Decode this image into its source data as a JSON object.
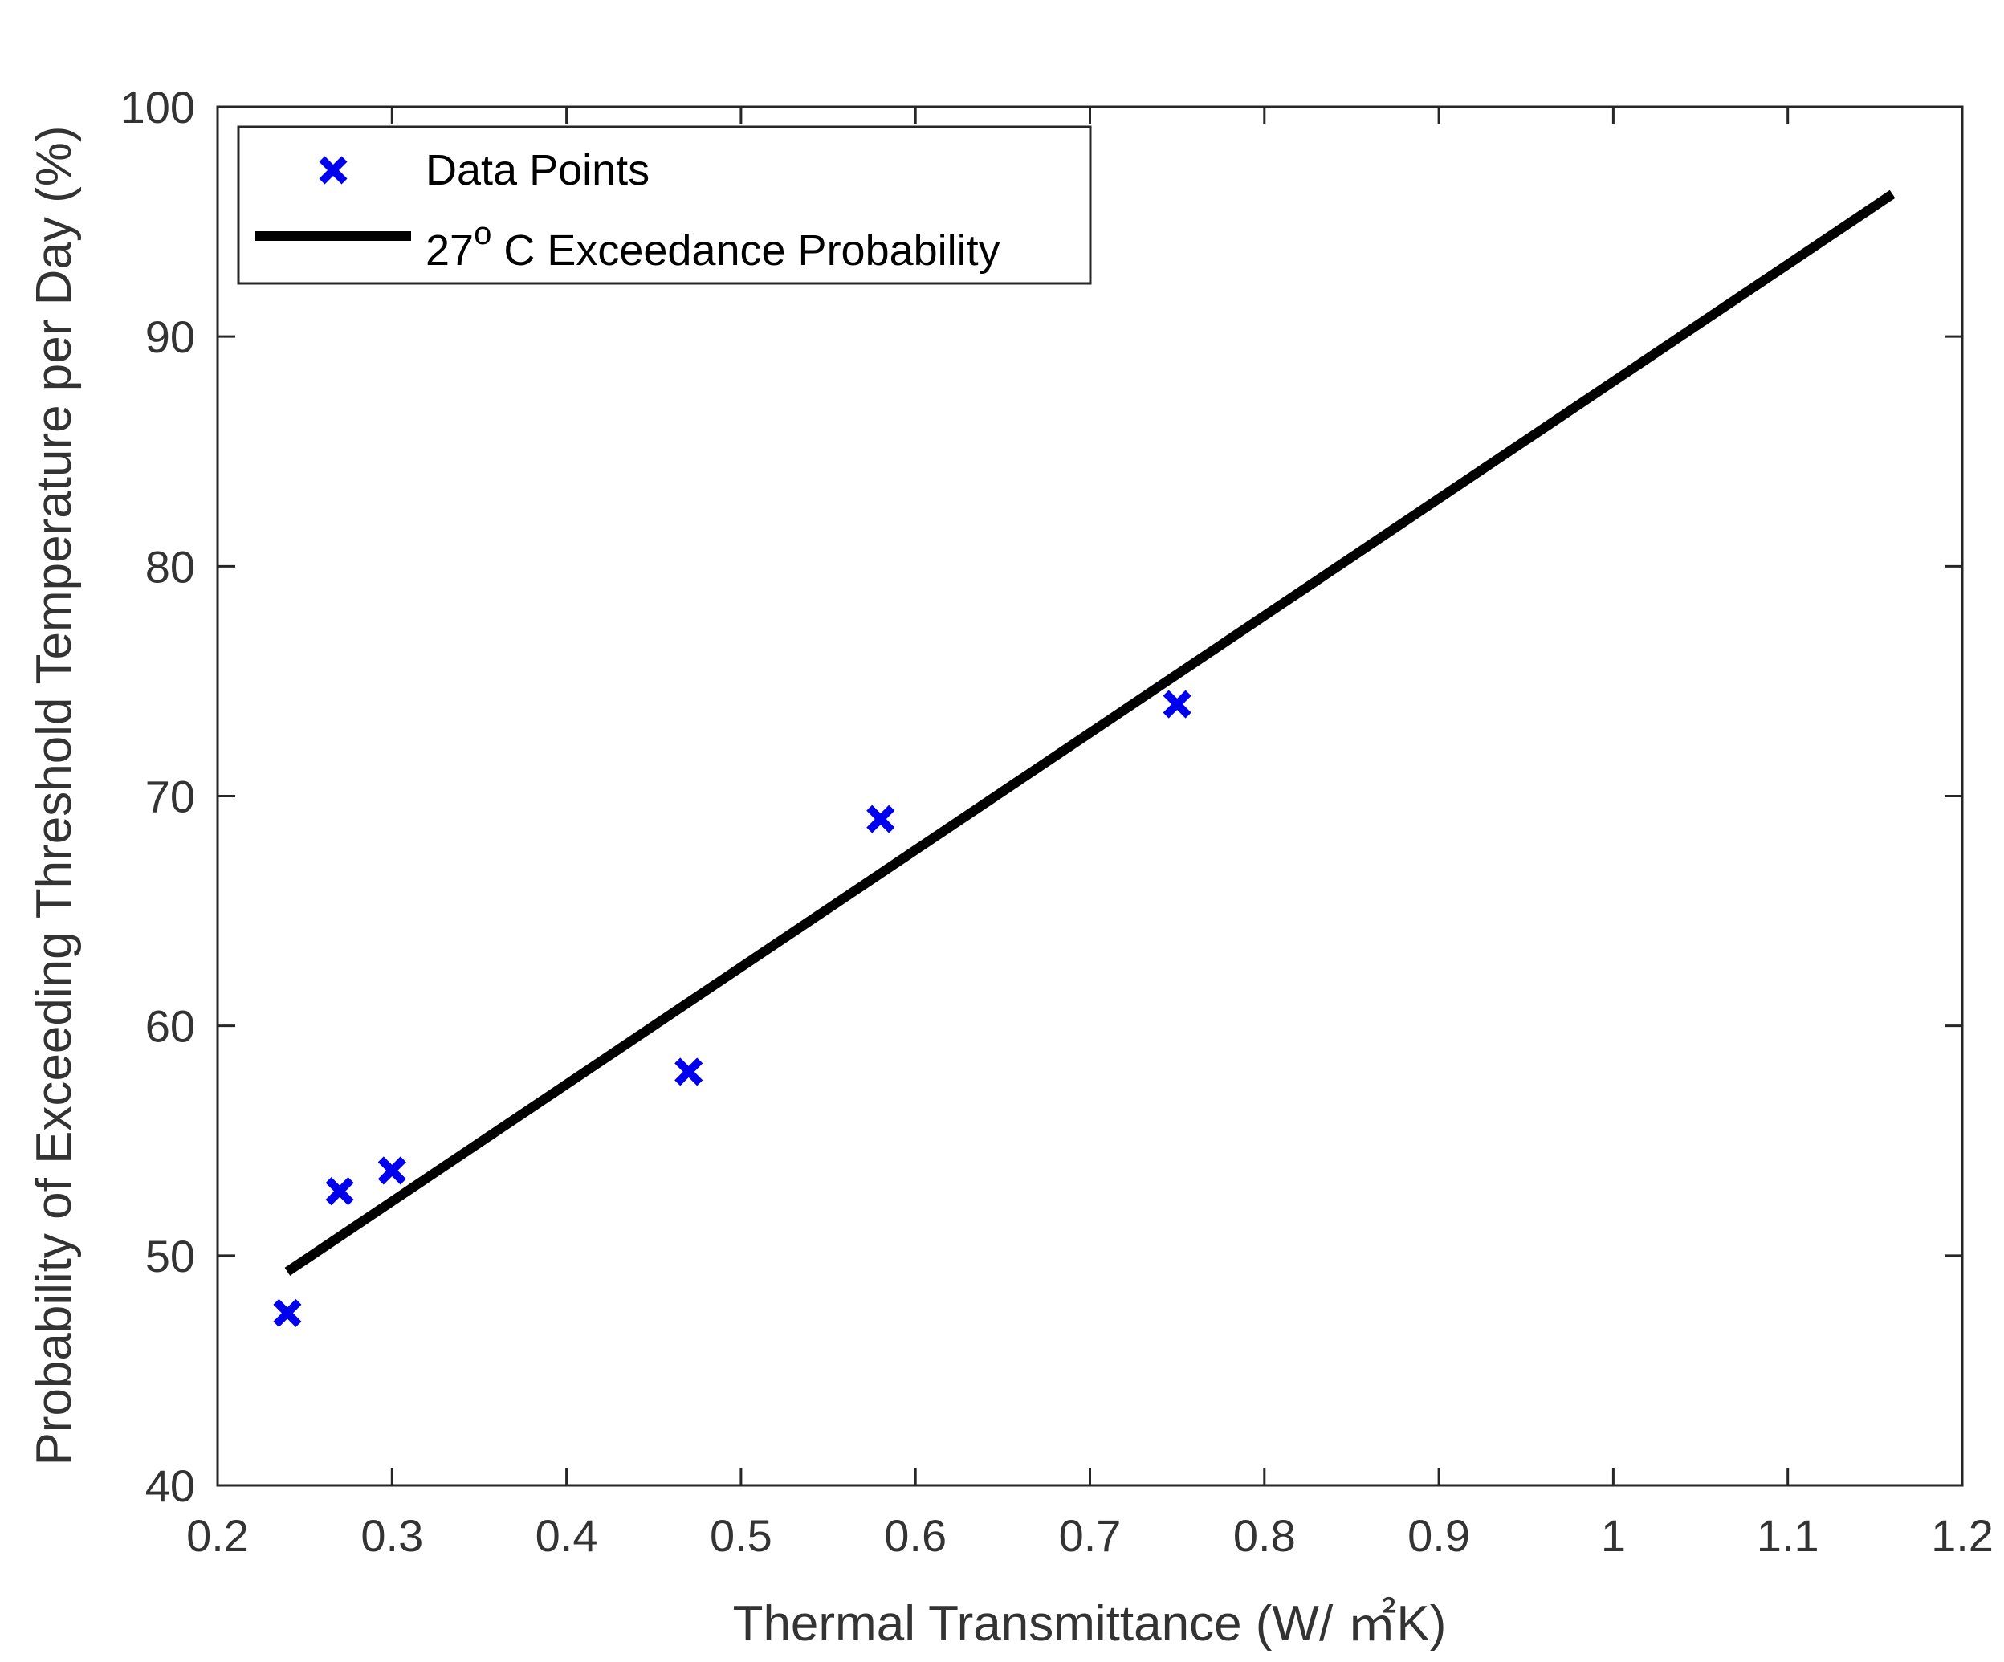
{
  "chart_data": {
    "type": "scatter",
    "title": "",
    "xlabel": "Thermal Transmittance (W/ ㎡K)",
    "ylabel": "Probability of Exceeding Threshold Temperature per Day (%)",
    "xlim": [
      0.2,
      1.2
    ],
    "ylim": [
      40,
      100
    ],
    "x_ticks": [
      0.2,
      0.3,
      0.4,
      0.5,
      0.6,
      0.7,
      0.8,
      0.9,
      1,
      1.1,
      1.2
    ],
    "x_tick_labels": [
      "0.2",
      "0.3",
      "0.4",
      "0.5",
      "0.6",
      "0.7",
      "0.8",
      "0.9",
      "1",
      "1.1",
      "1.2"
    ],
    "y_ticks": [
      40,
      50,
      60,
      70,
      80,
      90,
      100
    ],
    "y_tick_labels": [
      "40",
      "50",
      "60",
      "70",
      "80",
      "90",
      "100"
    ],
    "grid": false,
    "legend_position": "top-left",
    "series": [
      {
        "name": "Data Points",
        "kind": "scatter",
        "marker": "x",
        "color": "#0000ee",
        "x": [
          0.24,
          0.27,
          0.3,
          0.47,
          0.58,
          0.75
        ],
        "y": [
          47.5,
          52.8,
          53.7,
          58.0,
          69.0,
          74.0
        ]
      },
      {
        "name": "27° C Exceedance Probability",
        "legend_main": "27",
        "legend_sup": "o",
        "legend_rest": " C Exceedance Probability",
        "kind": "line",
        "color": "#000000",
        "x": [
          0.24,
          1.16
        ],
        "y": [
          49.3,
          96.2
        ]
      }
    ]
  }
}
